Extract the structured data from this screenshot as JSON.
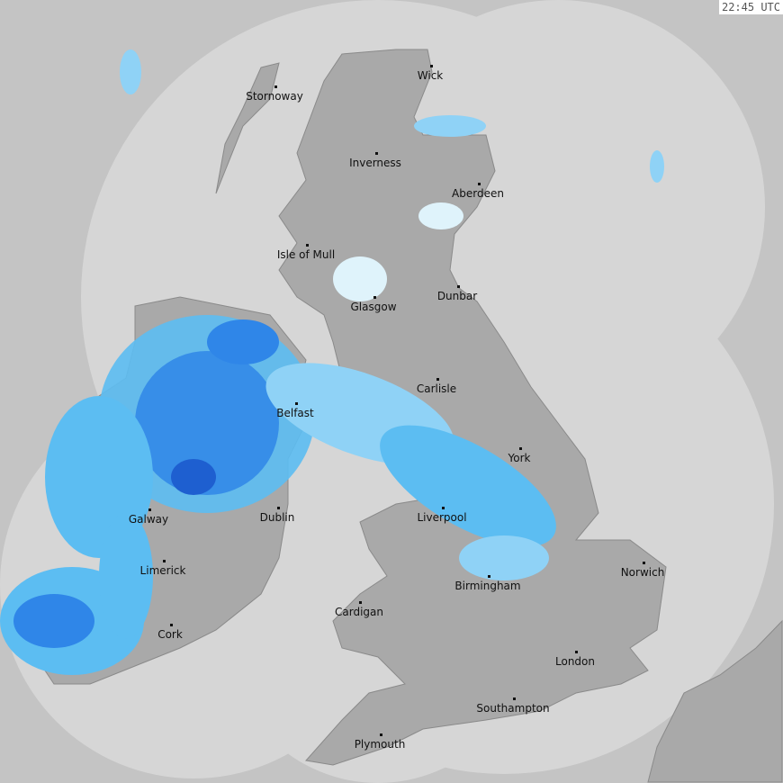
{
  "timestamp": "22:45 UTC",
  "colors": {
    "background": "#c4c4c4",
    "radar_coverage": "#d6d6d6",
    "land": "#a9a9a9",
    "rain_light": "#dff3fb",
    "rain_moderate": "#5cbdf2",
    "rain_heavy": "#2f86e8",
    "rain_very_heavy": "#1e5fd0"
  },
  "cities": [
    {
      "name": "Stornoway"
    },
    {
      "name": "Wick"
    },
    {
      "name": "Inverness"
    },
    {
      "name": "Aberdeen"
    },
    {
      "name": "Isle of Mull"
    },
    {
      "name": "Dunbar"
    },
    {
      "name": "Glasgow"
    },
    {
      "name": "Carlisle"
    },
    {
      "name": "Belfast"
    },
    {
      "name": "York"
    },
    {
      "name": "Galway"
    },
    {
      "name": "Dublin"
    },
    {
      "name": "Liverpool"
    },
    {
      "name": "Limerick"
    },
    {
      "name": "Norwich"
    },
    {
      "name": "Birmingham"
    },
    {
      "name": "Cardigan"
    },
    {
      "name": "Cork"
    },
    {
      "name": "London"
    },
    {
      "name": "Southampton"
    },
    {
      "name": "Plymouth"
    }
  ]
}
